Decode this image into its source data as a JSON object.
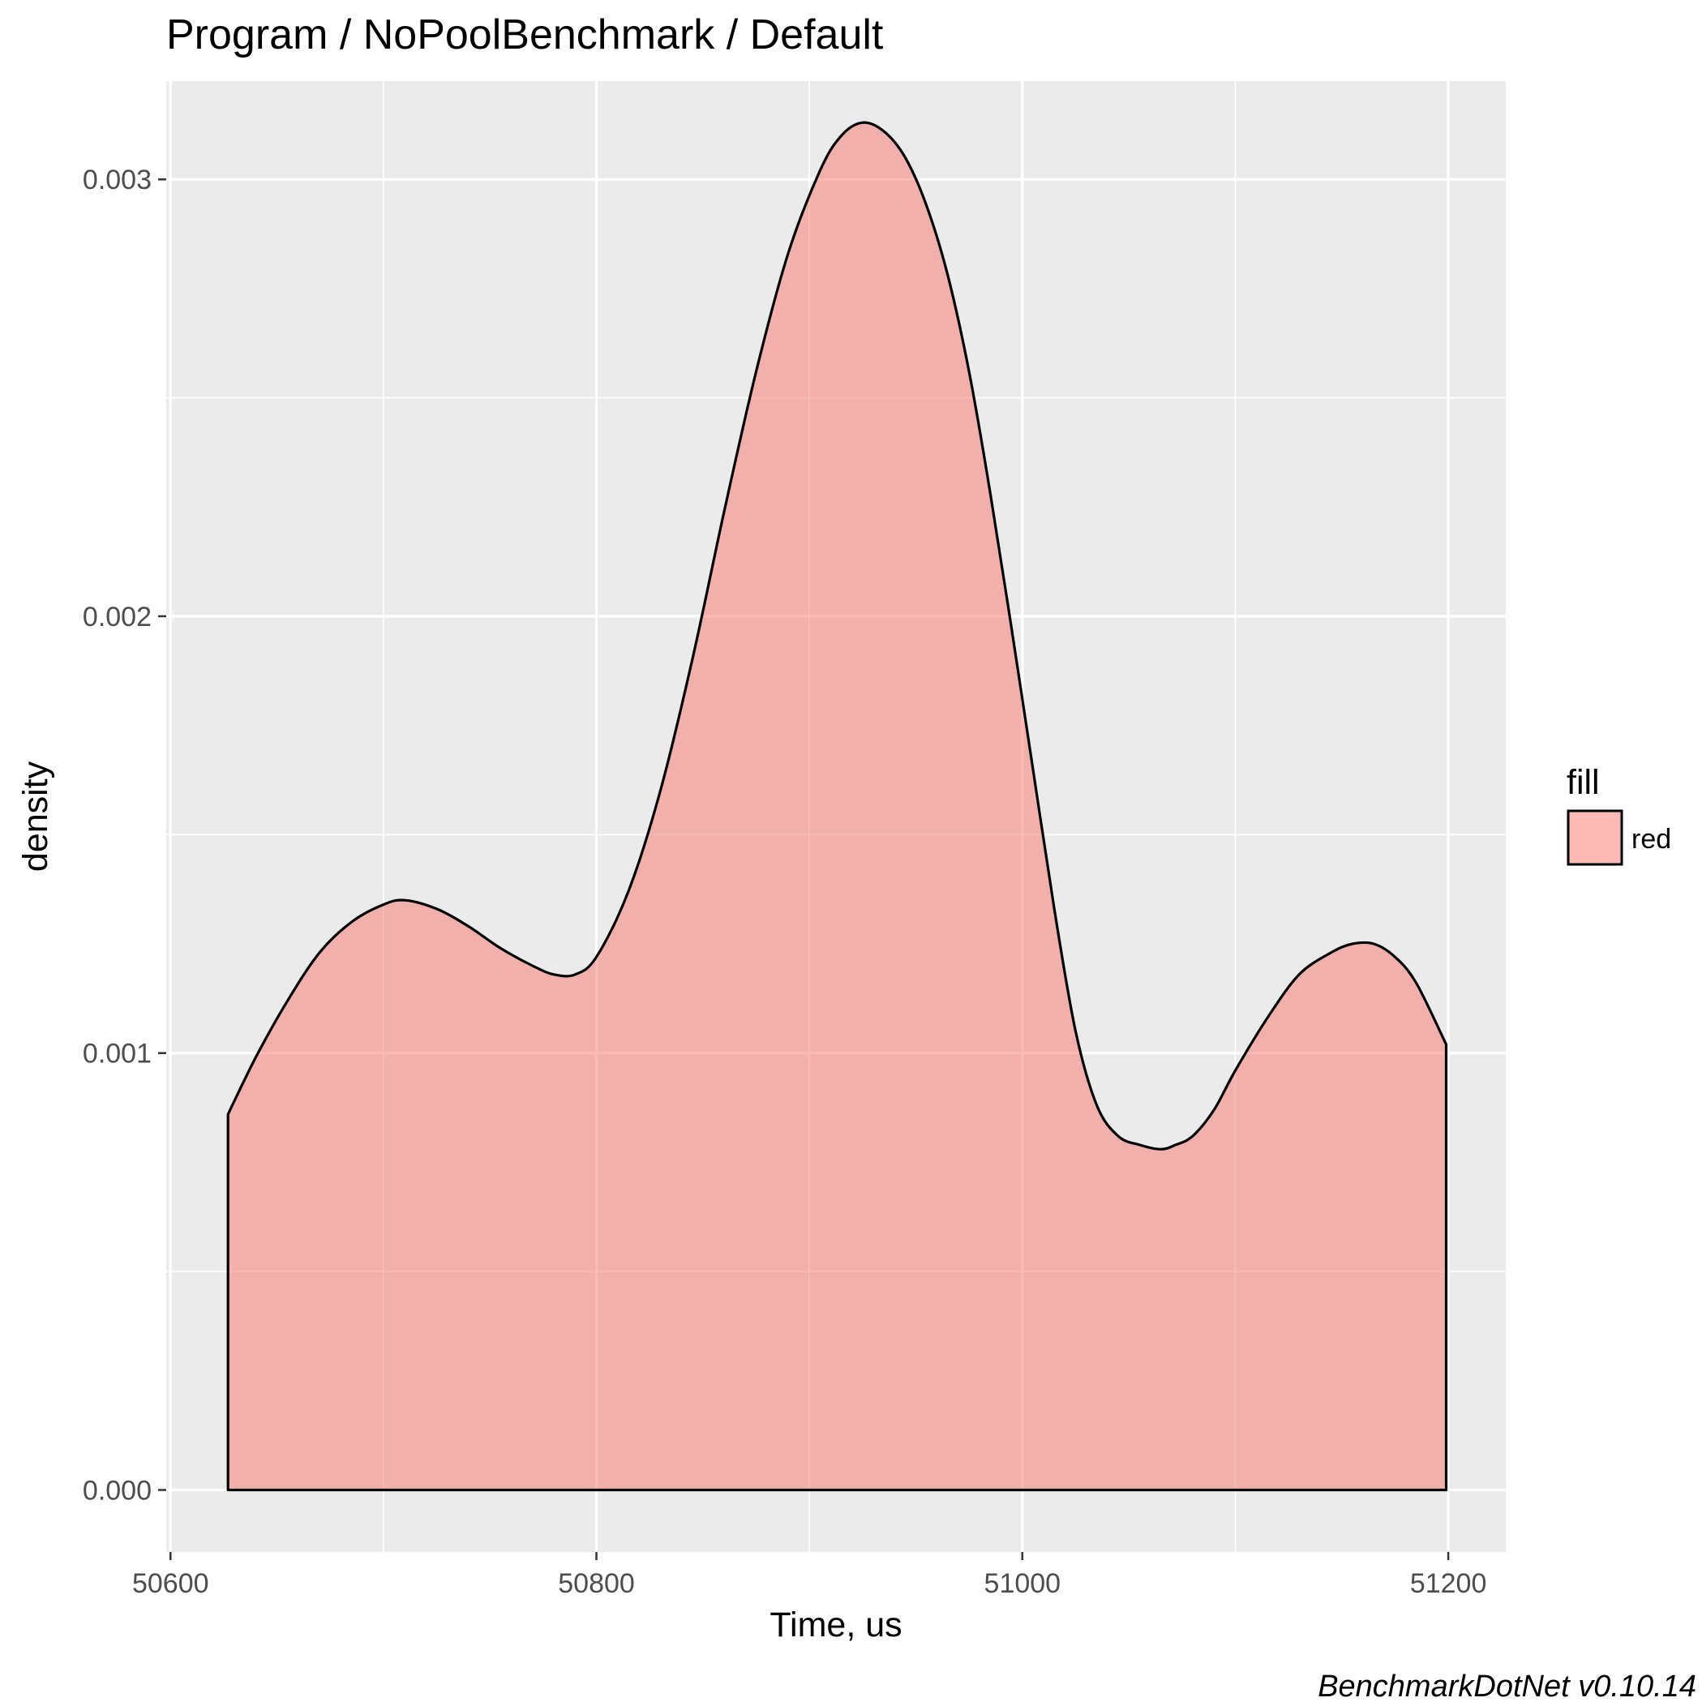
{
  "chart_data": {
    "type": "area",
    "title": "Program / NoPoolBenchmark / Default",
    "xlabel": "Time, us",
    "ylabel": "density",
    "caption": "BenchmarkDotNet v0.10.14",
    "xlim": [
      50598,
      51227
    ],
    "ylim": [
      -0.000142,
      0.003225
    ],
    "x_ticks": [
      50600,
      50800,
      51000,
      51200
    ],
    "x_tick_labels": [
      "50600",
      "50800",
      "51000",
      "51200"
    ],
    "x_minor_ticks": [
      50700,
      50900,
      51100
    ],
    "y_ticks": [
      0,
      0.001,
      0.002,
      0.003
    ],
    "y_tick_labels": [
      "0.000",
      "0.001",
      "0.002",
      "0.003"
    ],
    "y_minor_ticks": [
      0.0005,
      0.0015,
      0.0025
    ],
    "grid": true,
    "legend": {
      "title": "fill",
      "entries": [
        "red"
      ],
      "position": "right"
    },
    "colors": {
      "panel_background": "#ebebeb",
      "grid": "#ffffff",
      "fill": "#f8766d",
      "fill_opacity": 0.5,
      "outline": "#000000",
      "tick_label": "#4d4d4d"
    },
    "series": [
      {
        "x": [
          50627,
          50640,
          50655,
          50670,
          50685,
          50700,
          50710,
          50725,
          50740,
          50755,
          50770,
          50780,
          50790,
          50800,
          50815,
          50830,
          50845,
          50860,
          50875,
          50890,
          50905,
          50915,
          50925,
          50935,
          50945,
          50955,
          50965,
          50975,
          50985,
          50995,
          51005,
          51015,
          51025,
          51035,
          51045,
          51055,
          51065,
          51072,
          51080,
          51090,
          51100,
          51115,
          51130,
          51145,
          51155,
          51165,
          51175,
          51185,
          51199
        ],
        "y": [
          0.00086,
          0.00099,
          0.00112,
          0.00123,
          0.0013,
          0.00134,
          0.00135,
          0.00133,
          0.00129,
          0.00124,
          0.0012,
          0.00118,
          0.00118,
          0.00122,
          0.00137,
          0.0016,
          0.0019,
          0.00224,
          0.00256,
          0.00283,
          0.00302,
          0.0031,
          0.00313,
          0.00311,
          0.00305,
          0.00294,
          0.00278,
          0.00256,
          0.00228,
          0.00197,
          0.00165,
          0.00133,
          0.00105,
          0.00088,
          0.00081,
          0.00079,
          0.00078,
          0.00079,
          0.00081,
          0.00087,
          0.00096,
          0.00108,
          0.00118,
          0.00123,
          0.00125,
          0.00125,
          0.00122,
          0.00116,
          0.00102
        ]
      }
    ]
  }
}
